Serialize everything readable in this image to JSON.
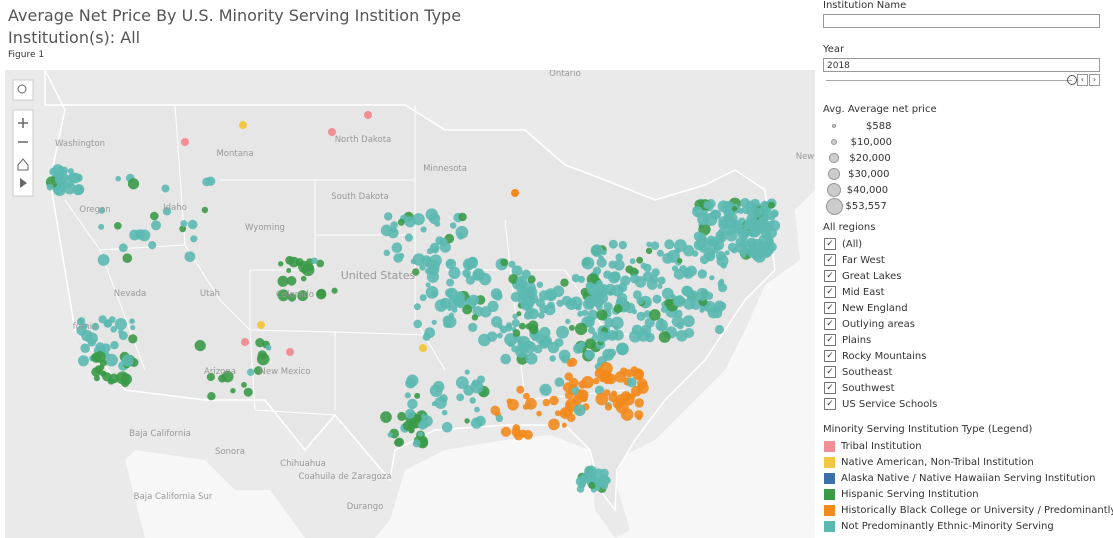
{
  "header": {
    "title": "Average Net Price By U.S. Minority Serving Instition Type",
    "subtitle": "Institution(s): All",
    "figure": "Figure 1"
  },
  "map": {
    "labels": [
      "Washington",
      "Montana",
      "North Dakota",
      "South Dakota",
      "Minnesota",
      "Wyoming",
      "Idaho",
      "Oregon",
      "Nevada",
      "Utah",
      "Colorado",
      "fornia",
      "Arizona",
      "New Mexico",
      "United States",
      "Ontario",
      "New",
      "Baja California",
      "Sonora",
      "Chihuahua",
      "Coahuila de Zaragoza",
      "Baja California Sur",
      "Durango"
    ]
  },
  "filters": {
    "institution_label": "Institution Name",
    "year_label": "Year",
    "year_value": "2018"
  },
  "size_legend": {
    "title": "Avg. Average net price",
    "items": [
      "$588",
      "$10,000",
      "$20,000",
      "$30,000",
      "$40,000",
      "$53,557"
    ]
  },
  "regions": {
    "title": "All regions",
    "items": [
      "(All)",
      "Far West",
      "Great Lakes",
      "Mid East",
      "New England",
      "Outlying areas",
      "Plains",
      "Rocky Mountains",
      "Southeast",
      "Southwest",
      "US Service Schools"
    ]
  },
  "type_legend": {
    "title": "Minority Serving Institution Type (Legend)",
    "items": [
      {
        "name": "Tribal Institution",
        "color": "#f28e96"
      },
      {
        "name": "Native American, Non-Tribal Institution",
        "color": "#f2c744"
      },
      {
        "name": "Alaska Native / Native Hawaiian Serving Institution",
        "color": "#3d6fa8"
      },
      {
        "name": "Hispanic Serving Institution",
        "color": "#3a9a48"
      },
      {
        "name": "Historically Black College or University / Predominantly ...",
        "color": "#f28a1c"
      },
      {
        "name": "Not Predominantly Ethnic-Minority Serving",
        "color": "#5cb9b1"
      }
    ]
  }
}
